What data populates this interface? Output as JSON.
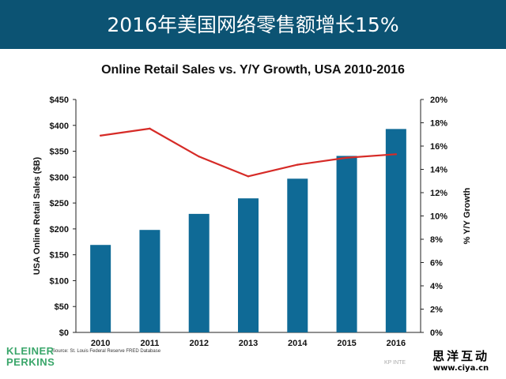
{
  "header": {
    "title": "2016年美国网络零售额增长15%",
    "background": "#0c5373"
  },
  "chart_data": {
    "type": "bar",
    "title": "Online Retail Sales vs. Y/Y Growth, USA 2010-2016",
    "categories": [
      "2010",
      "2011",
      "2012",
      "2013",
      "2014",
      "2015",
      "2016"
    ],
    "series": [
      {
        "name": "USA Online Retail Sales ($B)",
        "type": "bar",
        "axis": "left",
        "color": "#0f6a96",
        "values": [
          169,
          198,
          229,
          259,
          297,
          341,
          393
        ]
      },
      {
        "name": "% Y/Y Growth",
        "type": "line",
        "axis": "right",
        "color": "#d62b27",
        "values": [
          16.9,
          17.5,
          15.1,
          13.4,
          14.4,
          15.0,
          15.3
        ]
      }
    ],
    "ylabel": "USA Online Retail Sales ($B)",
    "ylabel_right": "% Y/Y Growth",
    "ylim": [
      0,
      450
    ],
    "ylim_right": [
      0,
      20
    ],
    "y_ticks": [
      "$0",
      "$50",
      "$100",
      "$150",
      "$200",
      "$250",
      "$300",
      "$350",
      "$400",
      "$450"
    ],
    "y_ticks_right": [
      "0%",
      "2%",
      "4%",
      "6%",
      "8%",
      "10%",
      "12%",
      "14%",
      "16%",
      "18%",
      "20%"
    ],
    "grid": false,
    "legend": "none"
  },
  "source": "Source: St. Louis Federal Reserve FRED Database",
  "logo": {
    "line1": "KLEINER",
    "line2": "PERKINS",
    "color": "#3aa66a"
  },
  "footer_mark": "KP INTE",
  "watermark": {
    "cn": "思洋互动",
    "url": "www.ciya.cn"
  }
}
